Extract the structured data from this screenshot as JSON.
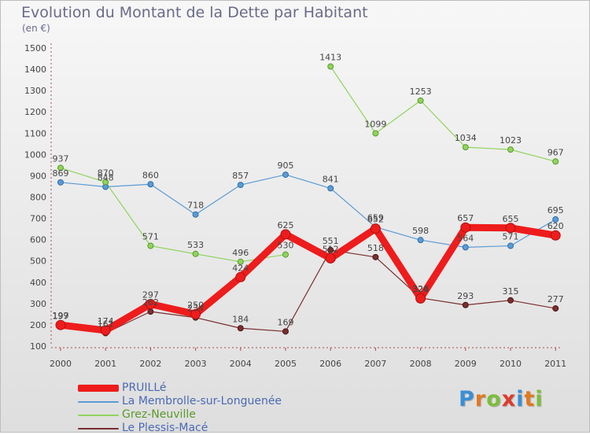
{
  "header": {
    "title": "Evolution du Montant de la Dette par Habitant",
    "unit": "(en €)"
  },
  "logo": {
    "letters": [
      "P",
      "r",
      "o",
      "x",
      "i",
      "t",
      "i"
    ],
    "colors": [
      "#3a8fd6",
      "#e07a1f",
      "#7bbf3a",
      "#e03a2a",
      "#3a8fd6",
      "#e07a1f",
      "#7bbf3a"
    ]
  },
  "chart_data": {
    "type": "line",
    "categories": [
      "2000",
      "2001",
      "2002",
      "2003",
      "2004",
      "2005",
      "2006",
      "2007",
      "2008",
      "2009",
      "2010",
      "2011"
    ],
    "ylim": [
      100,
      1500
    ],
    "yticks": [
      "100",
      "200",
      "300",
      "400",
      "500",
      "600",
      "700",
      "800",
      "900",
      "1000",
      "1100",
      "1200",
      "1300",
      "1400",
      "1500"
    ],
    "grid": false,
    "legend_position": "bottom-left",
    "series": [
      {
        "name": "La Membrolle-sur-Longuenée",
        "color": "#5b9bd5",
        "values": [
          869,
          848,
          860,
          718,
          857,
          905,
          841,
          659,
          598,
          564,
          571,
          695
        ]
      },
      {
        "name": "Grez-Neuville",
        "color": "#8fd45c",
        "values": [
          937,
          870,
          571,
          533,
          496,
          530,
          null,
          null,
          null,
          null,
          null,
          null
        ],
        "values2": [
          null,
          null,
          null,
          null,
          null,
          null,
          1413,
          1099,
          1253,
          1034,
          1023,
          967
        ]
      },
      {
        "name": "Le Plessis-Macé",
        "color": "#7a2e2e",
        "values": [
          197,
          161,
          262,
          234,
          184,
          169,
          551,
          518,
          326,
          293,
          315,
          277
        ]
      },
      {
        "name": "PRUILLé",
        "color": "#ee1c1c",
        "values": [
          199,
          174,
          297,
          250,
          424,
          625,
          512,
          652,
          324,
          657,
          655,
          620
        ]
      }
    ],
    "legend": [
      "PRUILLé",
      "La Membrolle-sur-Longuenée",
      "Grez-Neuville",
      "Le Plessis-Macé"
    ],
    "legend_colors": [
      "#ee1c1c",
      "#5b9bd5",
      "#8fd45c",
      "#7a2e2e"
    ]
  }
}
